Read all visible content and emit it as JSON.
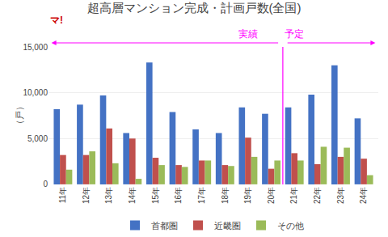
{
  "chart_data": {
    "type": "bar",
    "title": "超高層マンション完成・計画戸数(全国)",
    "ylabel": "（戸）",
    "categories": [
      "11年",
      "12年",
      "13年",
      "14年",
      "15年",
      "16年",
      "17年",
      "18年",
      "19年",
      "20年",
      "21年",
      "22年",
      "23年",
      "24年"
    ],
    "series": [
      {
        "name": "首都圏",
        "color": "#4472c4",
        "values": [
          8200,
          8700,
          9700,
          5600,
          13300,
          7900,
          6000,
          5600,
          8400,
          7700,
          8400,
          9800,
          13000,
          7200
        ]
      },
      {
        "name": "近畿圏",
        "color": "#c0504d",
        "values": [
          3200,
          3200,
          6100,
          5000,
          2900,
          2100,
          2600,
          2100,
          5100,
          1700,
          3400,
          2200,
          3000,
          2800
        ]
      },
      {
        "name": "その他",
        "color": "#9bbb59",
        "values": [
          1600,
          3600,
          2300,
          600,
          2100,
          1900,
          2600,
          2000,
          3000,
          2600,
          2600,
          4100,
          4000,
          1000
        ]
      }
    ],
    "ylim": [
      0,
      15000
    ],
    "yticks": [
      0,
      {
        "value": 5000,
        "label": "5,000"
      },
      {
        "value": 10000,
        "label": "10,000"
      },
      {
        "value": 15000,
        "label": "15,000"
      }
    ],
    "grid": true,
    "legend": "bottom",
    "annotations": [
      {
        "text": "実績",
        "color": "#ff00ff",
        "until": "20年"
      },
      {
        "text": "予定",
        "color": "#ff00ff",
        "from": "21年"
      },
      {
        "text": "マ!",
        "color": "#cc0000"
      }
    ]
  }
}
